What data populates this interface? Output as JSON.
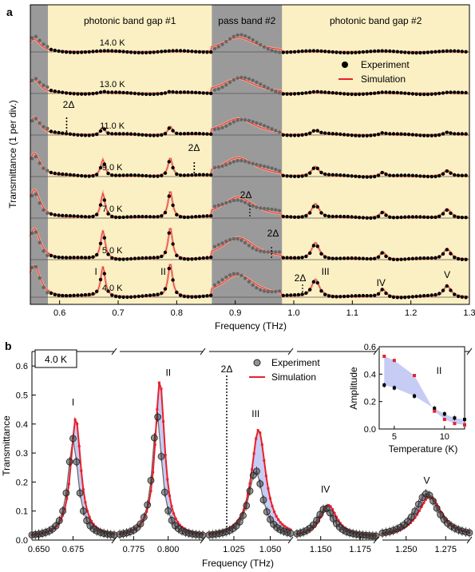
{
  "colors": {
    "gap": "#fbf0c4",
    "pass": "#9a9a9a",
    "experiment": "#000000",
    "simulation": "#e8202a",
    "simulation_band": "#f2a98d",
    "fill": "#b9bff2"
  },
  "panel_a": {
    "label": "a",
    "regions": [
      "photonic band gap #1",
      "pass band #2",
      "photonic band gap #2"
    ],
    "legend": [
      "Experiment",
      "Simulation"
    ],
    "ylabel": "Transmittance (1 per div.)",
    "xlabel": "Frequency (THz)",
    "xticks": [
      "0.6",
      "0.7",
      "0.8",
      "0.9",
      "1.0",
      "1.1",
      "1.2",
      "1.3"
    ],
    "delta_label": "2Δ",
    "mode_labels": [
      "I",
      "II",
      "III",
      "IV",
      "V"
    ]
  },
  "panel_b": {
    "label": "b",
    "temp_box": "4.0 K",
    "ylabel": "Transmittance",
    "xlabel": "Frequency (THz)",
    "yticks": [
      "0.0",
      "0.1",
      "0.2",
      "0.3",
      "0.4",
      "0.5",
      "0.6"
    ],
    "xticks": [
      "0.650",
      "0.675",
      "0.775",
      "0.800",
      "1.025",
      "1.050",
      "1.150",
      "1.175",
      "1.250",
      "1.275"
    ],
    "legend": [
      "Experiment",
      "Simulation"
    ],
    "delta_label": "2Δ",
    "mode_labels": [
      "I",
      "II",
      "III",
      "IV",
      "V"
    ]
  },
  "inset": {
    "xlabel": "Temperature (K)",
    "ylabel": "Amplitude",
    "mode": "II",
    "xticks": [
      "5",
      "10"
    ],
    "yticks": [
      "0.0",
      "0.2",
      "0.4",
      "0.6"
    ]
  },
  "chart_data": [
    {
      "type": "line",
      "series": [
        {
          "name": "14.0 K",
          "temperature_K": 14.0
        },
        {
          "name": "13.0 K",
          "temperature_K": 13.0
        },
        {
          "name": "11.0 K",
          "temperature_K": 11.0
        },
        {
          "name": "9.0 K",
          "temperature_K": 9.0
        },
        {
          "name": "7.0 K",
          "temperature_K": 7.0
        },
        {
          "name": "5.0 K",
          "temperature_K": 5.0
        },
        {
          "name": "4.0 K",
          "temperature_K": 4.0
        }
      ],
      "xlim": [
        0.55,
        1.3
      ],
      "regions_THz": [
        [
          0.58,
          0.86
        ],
        [
          0.86,
          0.98
        ],
        [
          0.98,
          1.3
        ]
      ],
      "peaks_THz": {
        "I": 0.674,
        "II": 0.789,
        "III": 1.037,
        "IV": 1.152,
        "V": 1.262
      }
    },
    {
      "type": "line",
      "ylim": [
        0,
        0.65
      ],
      "peaks": [
        {
          "label": "I",
          "center": 0.675,
          "experiment_peak": 0.35,
          "simulation_peak": 0.42
        },
        {
          "label": "II",
          "center": 0.792,
          "experiment_peak": 0.43,
          "simulation_peak": 0.55
        },
        {
          "label": "III",
          "center": 1.04,
          "experiment_peak": 0.24,
          "simulation_peak": 0.38
        },
        {
          "label": "IV",
          "center": 1.153,
          "experiment_peak": 0.11,
          "simulation_peak": 0.12
        },
        {
          "label": "V",
          "center": 1.263,
          "experiment_peak": 0.16,
          "simulation_peak": 0.15
        }
      ]
    },
    {
      "type": "scatter",
      "xlim": [
        3.5,
        12
      ],
      "ylim": [
        0,
        0.6
      ],
      "series": [
        {
          "name": "Experiment",
          "x": [
            4,
            5,
            7,
            9,
            10,
            11,
            12
          ],
          "y": [
            0.32,
            0.3,
            0.24,
            0.15,
            0.11,
            0.08,
            0.07
          ]
        },
        {
          "name": "Simulation",
          "x": [
            4,
            5,
            7,
            9,
            10,
            11,
            12
          ],
          "y": [
            0.53,
            0.5,
            0.39,
            0.13,
            0.07,
            0.04,
            0.03
          ]
        }
      ]
    }
  ]
}
